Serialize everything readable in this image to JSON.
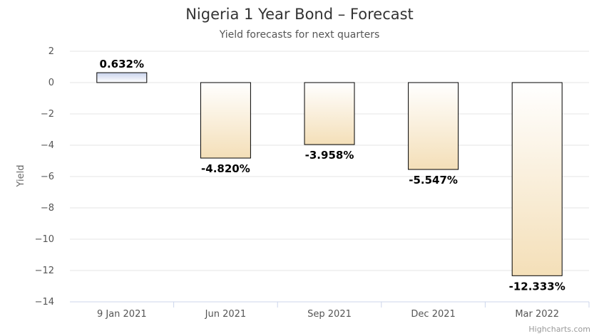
{
  "chart_data": {
    "type": "bar",
    "title": "Nigeria 1 Year Bond - Forecast",
    "subtitle": "Yield forecasts for next quarters",
    "xlabel": "",
    "ylabel": "Yield",
    "categories": [
      "9 Jan 2021",
      "Jun 2021",
      "Sep 2021",
      "Dec 2021",
      "Mar 2022"
    ],
    "values": [
      0.632,
      -4.82,
      -3.958,
      -5.547,
      -12.333
    ],
    "data_labels": [
      "0.632%",
      "-4.820%",
      "-3.958%",
      "-5.547%",
      "-12.333%"
    ],
    "ylim": [
      -14,
      2
    ],
    "yticks": [
      2,
      0,
      -2,
      -4,
      -6,
      -8,
      -10,
      -12,
      -14
    ],
    "ytick_labels": [
      "2",
      "0",
      "−2",
      "−4",
      "−6",
      "−8",
      "−10",
      "−12",
      "−14"
    ],
    "grid": true,
    "legend": "none",
    "colors": {
      "positive_top": "#c9d3ec",
      "positive_bottom": "#ffffff",
      "negative_top": "#ffffff",
      "negative_bottom": "#f4dfb8",
      "bar_border": "#000000",
      "grid": "#e6e6e6",
      "axis": "#ccd6eb"
    }
  },
  "credits": "Highcharts.com"
}
